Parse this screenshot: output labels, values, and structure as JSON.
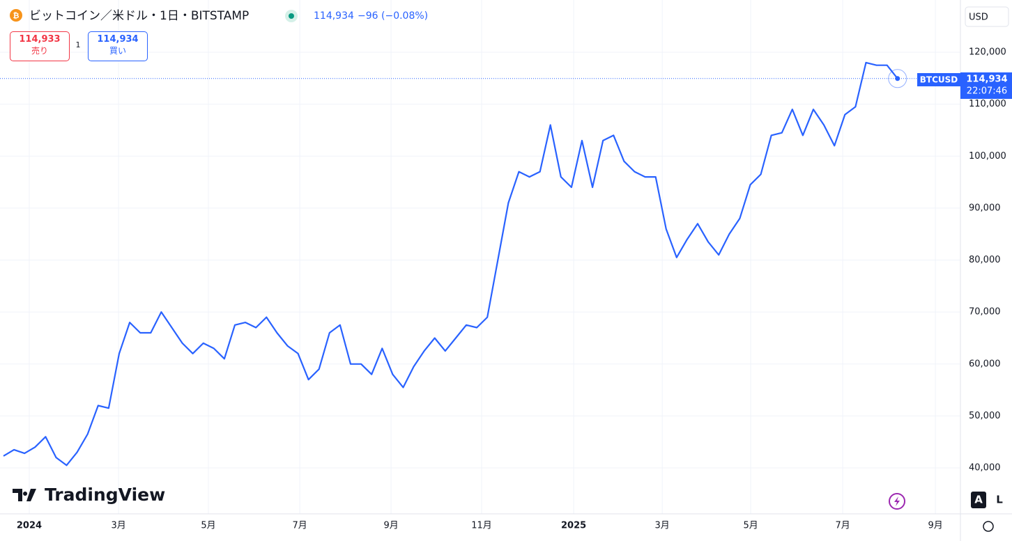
{
  "header": {
    "symbol": "ビットコイン／米ドル・1日・BITSTAMP",
    "last": "114,934",
    "change": "−96 (−0.08%)",
    "sell_price": "114,933",
    "sell_label": "売り",
    "quantity": "1",
    "buy_price": "114,934",
    "buy_label": "買い",
    "currency": "USD"
  },
  "price_tag": {
    "symbol": "BTCUSD",
    "price": "114,934",
    "countdown": "22:07:46"
  },
  "logo": "TradingView",
  "buttons": [
    "A",
    "L"
  ],
  "chart_data": {
    "type": "line",
    "series": [
      {
        "name": "BTCUSD",
        "color": "#2962ff",
        "values": [
          42300,
          43500,
          42800,
          44000,
          46000,
          42000,
          40500,
          43000,
          46500,
          52000,
          51500,
          62000,
          68000,
          66000,
          66000,
          70000,
          67000,
          64000,
          62000,
          64000,
          63000,
          61000,
          67500,
          68000,
          67000,
          69000,
          66000,
          63500,
          62000,
          57000,
          59000,
          66000,
          67500,
          60000,
          60000,
          58000,
          63000,
          58000,
          55500,
          59500,
          62500,
          65000,
          62500,
          65000,
          67500,
          67000,
          69000,
          80000,
          91000,
          97000,
          96000,
          97000,
          106000,
          96000,
          94000,
          103000,
          94000,
          103000,
          104000,
          99000,
          97000,
          96000,
          96000,
          86000,
          80500,
          84000,
          87000,
          83500,
          81000,
          85000,
          88000,
          94500,
          96500,
          104000,
          104500,
          109000,
          104000,
          109000,
          106000,
          102000,
          108000,
          109500,
          118000,
          117500,
          117500,
          114934
        ]
      }
    ],
    "current": 114934,
    "xlim": [
      0,
      90.98
    ],
    "xticks": [
      {
        "value": 2.45,
        "label": "2024"
      },
      {
        "value": 10.94,
        "label": "3月"
      },
      {
        "value": 19.48,
        "label": "5月"
      },
      {
        "value": 28.17,
        "label": "7月"
      },
      {
        "value": 36.85,
        "label": "9月"
      },
      {
        "value": 45.46,
        "label": "11月"
      },
      {
        "value": 54.21,
        "label": "2025"
      },
      {
        "value": 62.63,
        "label": "3月"
      },
      {
        "value": 71.04,
        "label": "5月"
      },
      {
        "value": 79.79,
        "label": "7月"
      },
      {
        "value": 88.6,
        "label": "9月"
      }
    ],
    "ylim": [
      31160,
      130050
    ],
    "yticks": [
      {
        "value": 40000,
        "label": "40,000"
      },
      {
        "value": 50000,
        "label": "50,000"
      },
      {
        "value": 60000,
        "label": "60,000"
      },
      {
        "value": 70000,
        "label": "70,000"
      },
      {
        "value": 80000,
        "label": "80,000"
      },
      {
        "value": 90000,
        "label": "90,000"
      },
      {
        "value": 100000,
        "label": "100,000"
      },
      {
        "value": 110000,
        "label": "110,000"
      },
      {
        "value": 120000,
        "label": "120,000"
      }
    ],
    "grid": true
  }
}
